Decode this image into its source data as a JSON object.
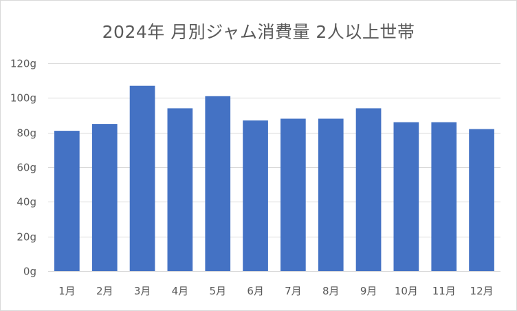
{
  "chart_data": {
    "type": "bar",
    "title": "2024年 月別ジャム消費量 2人以上世帯",
    "xlabel": "",
    "ylabel": "",
    "categories": [
      "1月",
      "2月",
      "3月",
      "4月",
      "5月",
      "6月",
      "7月",
      "8月",
      "9月",
      "10月",
      "11月",
      "12月"
    ],
    "values": [
      81,
      85,
      107,
      94,
      101,
      87,
      88,
      88,
      94,
      86,
      86,
      82
    ],
    "ylim": [
      0,
      120
    ],
    "yticks": [
      0,
      20,
      40,
      60,
      80,
      100,
      120
    ],
    "ytick_labels": [
      "0g",
      "20g",
      "40g",
      "60g",
      "80g",
      "100g",
      "120g"
    ],
    "grid": true,
    "legend": "none",
    "bar_color": "#4472c4",
    "grid_color": "#d9d9d9",
    "text_color": "#595959"
  }
}
